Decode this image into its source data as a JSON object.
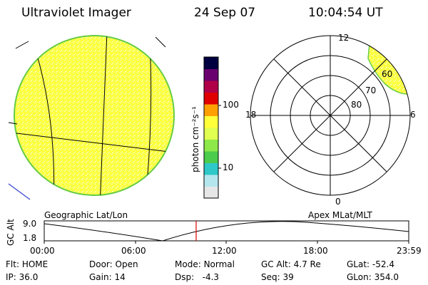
{
  "header": {
    "instrument": "Ultraviolet Imager",
    "date": "24 Sep 07",
    "time": "10:04:54 UT"
  },
  "colorbar": {
    "unit_label": "photon cm⁻²s⁻¹",
    "tick_100": "100",
    "tick_10": "10",
    "colors": [
      "#e6e6e6",
      "#b4e6ee",
      "#2ec8c8",
      "#4ccc4c",
      "#8ee84a",
      "#e0ff50",
      "#ffff3a",
      "#ffa000",
      "#e00000",
      "#b00048",
      "#6a0070",
      "#000040"
    ]
  },
  "polar_plot": {
    "mlt_labels": {
      "top": "12",
      "right": "6",
      "left": "18",
      "bottom": "0"
    },
    "lat_labels": [
      "60",
      "70",
      "80"
    ]
  },
  "coord_labels": {
    "left": "Geographic Lat/Lon",
    "right": "Apex MLat/MLT"
  },
  "altitude_plot": {
    "ylabel": "GC Alt",
    "ytick_top": "9.0",
    "ytick_bottom": "1.8",
    "xticks": [
      "00:00",
      "06:00",
      "12:00",
      "18:00",
      "23:59"
    ],
    "current_time_marker": "10:04:54"
  },
  "status": {
    "row1": [
      {
        "label": "Flt:",
        "value": "HOME"
      },
      {
        "label": "Door:",
        "value": "Open"
      },
      {
        "label": "Mode:",
        "value": "Normal"
      },
      {
        "label": "GC Alt:",
        "value": "4.7 Re"
      },
      {
        "label": "GLat:",
        "value": "-52.4"
      }
    ],
    "row2": [
      {
        "label": "IP:",
        "value": "36.0"
      },
      {
        "label": "Gain:",
        "value": "14"
      },
      {
        "label": "Dsp:",
        "value": "-4.3"
      },
      {
        "label": "Seq:",
        "value": "39"
      },
      {
        "label": "GLon:",
        "value": "354.0"
      }
    ]
  }
}
